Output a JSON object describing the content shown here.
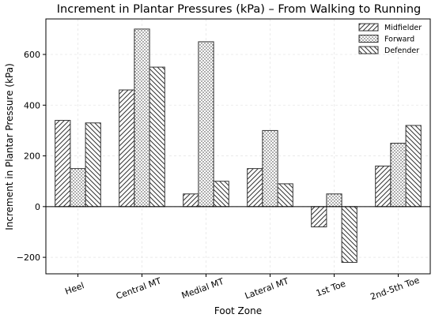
{
  "chart_data": {
    "type": "bar",
    "title": "Increment in Plantar Pressures (kPa) – From Walking to Running",
    "xlabel": "Foot Zone",
    "ylabel": "Increment in Plantar Pressure (kPa)",
    "categories": [
      "Heel",
      "Central MT",
      "Medial MT",
      "Lateral MT",
      "1st Toe",
      "2nd-5th Toe"
    ],
    "series": [
      {
        "name": "Midfielder",
        "values": [
          340,
          460,
          50,
          150,
          -80,
          160
        ],
        "pattern": "hatch-forward"
      },
      {
        "name": "Forward",
        "values": [
          150,
          700,
          650,
          300,
          50,
          250
        ],
        "pattern": "dots"
      },
      {
        "name": "Defender",
        "values": [
          330,
          550,
          100,
          90,
          -220,
          320
        ],
        "pattern": "hatch-back"
      }
    ],
    "ylim": [
      -265,
      740
    ],
    "yticks": [
      -200,
      0,
      200,
      400,
      600
    ],
    "ytick_labels": [
      "−200",
      "0",
      "200",
      "400",
      "600"
    ],
    "grid": true,
    "legend_position": "top-right",
    "bar_fill": "#ffffff",
    "bar_edge": "#333333"
  }
}
